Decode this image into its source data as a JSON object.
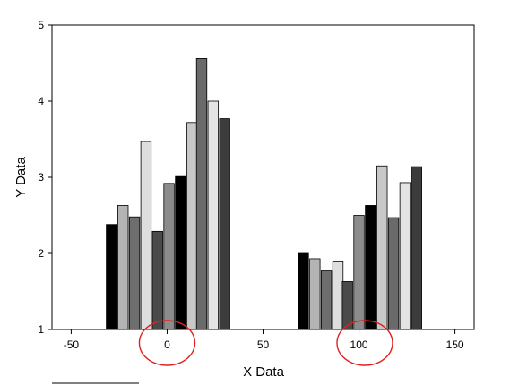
{
  "chart_data": {
    "type": "bar",
    "xlabel": "X Data",
    "ylabel": "Y Data",
    "xlim": [
      -60,
      160
    ],
    "ylim": [
      1,
      5
    ],
    "grid": false,
    "legend": "none",
    "x_ticks": [
      -50,
      0,
      50,
      100,
      150
    ],
    "y_ticks": [
      1,
      2,
      3,
      4,
      5
    ],
    "bars": [
      {
        "x": -29,
        "y": 2.38,
        "color": "#000000"
      },
      {
        "x": -23,
        "y": 2.63,
        "color": "#b4b4b4"
      },
      {
        "x": -17,
        "y": 2.48,
        "color": "#6e6e6e"
      },
      {
        "x": -11,
        "y": 3.47,
        "color": "#dedede"
      },
      {
        "x": -5,
        "y": 2.29,
        "color": "#4a4a4a"
      },
      {
        "x": 1,
        "y": 2.92,
        "color": "#8c8c8c"
      },
      {
        "x": 7,
        "y": 3.01,
        "color": "#000000"
      },
      {
        "x": 13,
        "y": 3.72,
        "color": "#c8c8c8"
      },
      {
        "x": 18,
        "y": 4.56,
        "color": "#6a6a6a"
      },
      {
        "x": 24,
        "y": 4.0,
        "color": "#e4e4e4"
      },
      {
        "x": 30,
        "y": 3.77,
        "color": "#3c3c3c"
      },
      {
        "x": 71,
        "y": 2.0,
        "color": "#000000"
      },
      {
        "x": 77,
        "y": 1.93,
        "color": "#b4b4b4"
      },
      {
        "x": 83,
        "y": 1.77,
        "color": "#6e6e6e"
      },
      {
        "x": 89,
        "y": 1.89,
        "color": "#dedede"
      },
      {
        "x": 94,
        "y": 1.63,
        "color": "#4a4a4a"
      },
      {
        "x": 100,
        "y": 2.5,
        "color": "#8c8c8c"
      },
      {
        "x": 106,
        "y": 2.63,
        "color": "#000000"
      },
      {
        "x": 112,
        "y": 3.15,
        "color": "#c8c8c8"
      },
      {
        "x": 118,
        "y": 2.47,
        "color": "#6a6a6a"
      },
      {
        "x": 124,
        "y": 2.93,
        "color": "#e4e4e4"
      },
      {
        "x": 130,
        "y": 3.14,
        "color": "#3c3c3c"
      }
    ],
    "annotations": [
      {
        "shape": "ellipse",
        "around_x": 0,
        "color": "#e02020"
      },
      {
        "shape": "ellipse",
        "around_x": 103,
        "color": "#e02020"
      }
    ]
  }
}
